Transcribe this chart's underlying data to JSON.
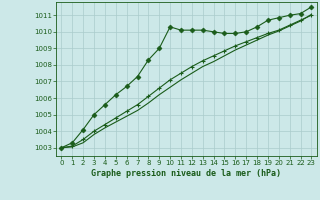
{
  "title": "Graphe pression niveau de la mer (hPa)",
  "bg_color": "#cce8e8",
  "grid_color": "#aacccc",
  "line_color": "#1a5c1a",
  "xlim": [
    -0.5,
    23.5
  ],
  "ylim": [
    1002.5,
    1011.8
  ],
  "yticks": [
    1003,
    1004,
    1005,
    1006,
    1007,
    1008,
    1009,
    1010,
    1011
  ],
  "xticks": [
    0,
    1,
    2,
    3,
    4,
    5,
    6,
    7,
    8,
    9,
    10,
    11,
    12,
    13,
    14,
    15,
    16,
    17,
    18,
    19,
    20,
    21,
    22,
    23
  ],
  "line1_x": [
    0,
    1,
    2,
    3,
    4,
    5,
    6,
    7,
    8,
    9,
    10,
    11,
    12,
    13,
    14,
    15,
    16,
    17,
    18,
    19,
    20,
    21,
    22,
    23
  ],
  "line1_y": [
    1003.0,
    1003.3,
    1004.1,
    1005.0,
    1005.6,
    1006.2,
    1006.7,
    1007.3,
    1008.3,
    1009.0,
    1010.3,
    1010.1,
    1010.1,
    1010.1,
    1010.0,
    1009.9,
    1009.9,
    1010.0,
    1010.3,
    1010.7,
    1010.85,
    1011.0,
    1011.1,
    1011.5
  ],
  "line2_x": [
    0,
    1,
    2,
    3,
    4,
    5,
    6,
    7,
    8,
    9,
    10,
    11,
    12,
    13,
    14,
    15,
    16,
    17,
    18,
    19,
    20,
    21,
    22,
    23
  ],
  "line2_y": [
    1003.0,
    1003.1,
    1003.5,
    1004.0,
    1004.4,
    1004.8,
    1005.2,
    1005.6,
    1006.1,
    1006.6,
    1007.1,
    1007.5,
    1007.9,
    1008.25,
    1008.55,
    1008.85,
    1009.15,
    1009.4,
    1009.65,
    1009.9,
    1010.1,
    1010.4,
    1010.7,
    1011.0
  ],
  "line3_x": [
    0,
    1,
    2,
    3,
    4,
    5,
    6,
    7,
    8,
    9,
    10,
    11,
    12,
    13,
    14,
    15,
    16,
    17,
    18,
    19,
    20,
    21,
    22,
    23
  ],
  "line3_y": [
    1003.0,
    1003.05,
    1003.3,
    1003.8,
    1004.2,
    1004.55,
    1004.9,
    1005.25,
    1005.7,
    1006.2,
    1006.65,
    1007.1,
    1007.5,
    1007.9,
    1008.2,
    1008.55,
    1008.9,
    1009.2,
    1009.5,
    1009.8,
    1010.05,
    1010.35,
    1010.65,
    1011.05
  ]
}
